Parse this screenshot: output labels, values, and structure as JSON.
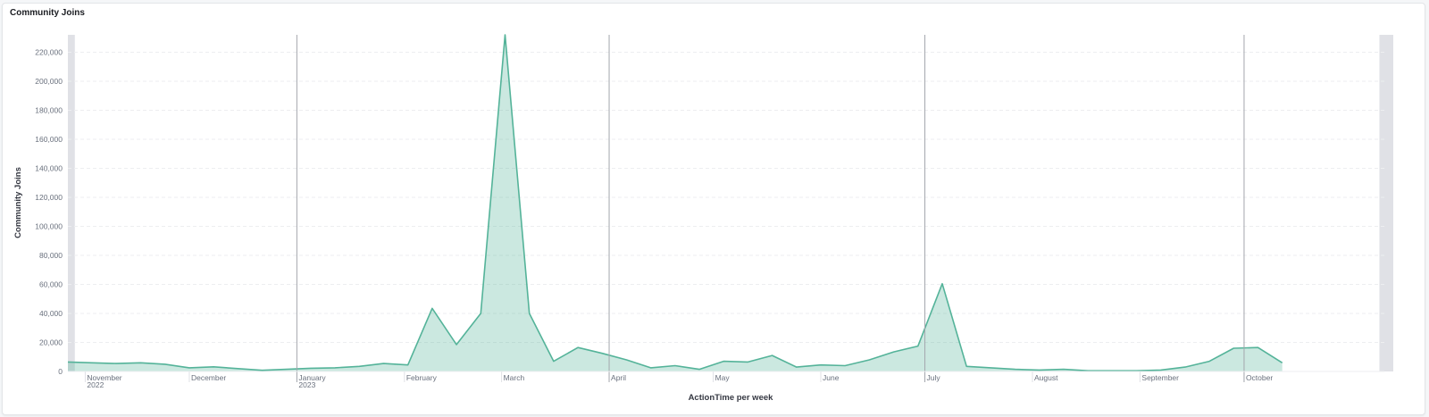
{
  "panel": {
    "title": "Community Joins"
  },
  "chart_data": {
    "type": "area",
    "title": "Community Joins",
    "xlabel": "ActionTime per week",
    "ylabel": "Community Joins",
    "ylim": [
      0,
      232000
    ],
    "yticks": [
      0,
      20000,
      40000,
      60000,
      80000,
      100000,
      120000,
      140000,
      160000,
      180000,
      200000,
      220000
    ],
    "ytick_labels": [
      "0",
      "20,000",
      "40,000",
      "60,000",
      "80,000",
      "100,000",
      "120,000",
      "140,000",
      "160,000",
      "180,000",
      "200,000",
      "220,000"
    ],
    "xlim": [
      "2022-10-27",
      "2023-11-13"
    ],
    "x_ticks": [
      {
        "date": "2022-11-01",
        "label": "November",
        "sublabel": "2022"
      },
      {
        "date": "2022-12-01",
        "label": "December",
        "sublabel": ""
      },
      {
        "date": "2023-01-01",
        "label": "January",
        "sublabel": "2023"
      },
      {
        "date": "2023-02-01",
        "label": "February",
        "sublabel": ""
      },
      {
        "date": "2023-03-01",
        "label": "March",
        "sublabel": ""
      },
      {
        "date": "2023-04-01",
        "label": "April",
        "sublabel": ""
      },
      {
        "date": "2023-05-01",
        "label": "May",
        "sublabel": ""
      },
      {
        "date": "2023-06-01",
        "label": "June",
        "sublabel": ""
      },
      {
        "date": "2023-07-01",
        "label": "July",
        "sublabel": ""
      },
      {
        "date": "2023-08-01",
        "label": "August",
        "sublabel": ""
      },
      {
        "date": "2023-09-01",
        "label": "September",
        "sublabel": ""
      },
      {
        "date": "2023-10-01",
        "label": "October",
        "sublabel": ""
      }
    ],
    "quarter_lines": [
      "2023-01-01",
      "2023-04-01",
      "2023-07-01",
      "2023-10-01"
    ],
    "out_of_range_shading": [
      [
        "2022-10-27",
        "2022-10-29"
      ],
      [
        "2023-11-09",
        "2023-11-13"
      ]
    ],
    "grid": true,
    "color": "#54b399",
    "series": [
      {
        "points": [
          [
            "2022-10-27",
            6500
          ],
          [
            "2022-11-03",
            6000
          ],
          [
            "2022-11-10",
            5500
          ],
          [
            "2022-11-17",
            6000
          ],
          [
            "2022-11-24",
            5000
          ],
          [
            "2022-12-01",
            2500
          ],
          [
            "2022-12-08",
            3200
          ],
          [
            "2022-12-15",
            2000
          ],
          [
            "2022-12-22",
            800
          ],
          [
            "2022-12-29",
            1500
          ],
          [
            "2023-01-05",
            2200
          ],
          [
            "2023-01-12",
            2500
          ],
          [
            "2023-01-19",
            3500
          ],
          [
            "2023-01-26",
            5500
          ],
          [
            "2023-02-02",
            4500
          ],
          [
            "2023-02-09",
            43500
          ],
          [
            "2023-02-16",
            18500
          ],
          [
            "2023-02-23",
            40000
          ],
          [
            "2023-03-02",
            232000
          ],
          [
            "2023-03-09",
            40000
          ],
          [
            "2023-03-16",
            7000
          ],
          [
            "2023-03-23",
            16500
          ],
          [
            "2023-03-30",
            12500
          ],
          [
            "2023-04-06",
            8000
          ],
          [
            "2023-04-13",
            2500
          ],
          [
            "2023-04-20",
            4000
          ],
          [
            "2023-04-27",
            1500
          ],
          [
            "2023-05-04",
            7000
          ],
          [
            "2023-05-11",
            6500
          ],
          [
            "2023-05-18",
            11000
          ],
          [
            "2023-05-25",
            3000
          ],
          [
            "2023-06-01",
            4500
          ],
          [
            "2023-06-08",
            4000
          ],
          [
            "2023-06-15",
            8000
          ],
          [
            "2023-06-22",
            13500
          ],
          [
            "2023-06-29",
            17500
          ],
          [
            "2023-07-06",
            60500
          ],
          [
            "2023-07-13",
            3500
          ],
          [
            "2023-07-20",
            2500
          ],
          [
            "2023-07-27",
            1500
          ],
          [
            "2023-08-03",
            1000
          ],
          [
            "2023-08-10",
            1500
          ],
          [
            "2023-08-17",
            500
          ],
          [
            "2023-08-24",
            500
          ],
          [
            "2023-08-31",
            500
          ],
          [
            "2023-09-07",
            1000
          ],
          [
            "2023-09-14",
            3000
          ],
          [
            "2023-09-21",
            7000
          ],
          [
            "2023-09-28",
            16000
          ],
          [
            "2023-10-05",
            16500
          ],
          [
            "2023-10-12",
            6000
          ]
        ]
      }
    ]
  }
}
